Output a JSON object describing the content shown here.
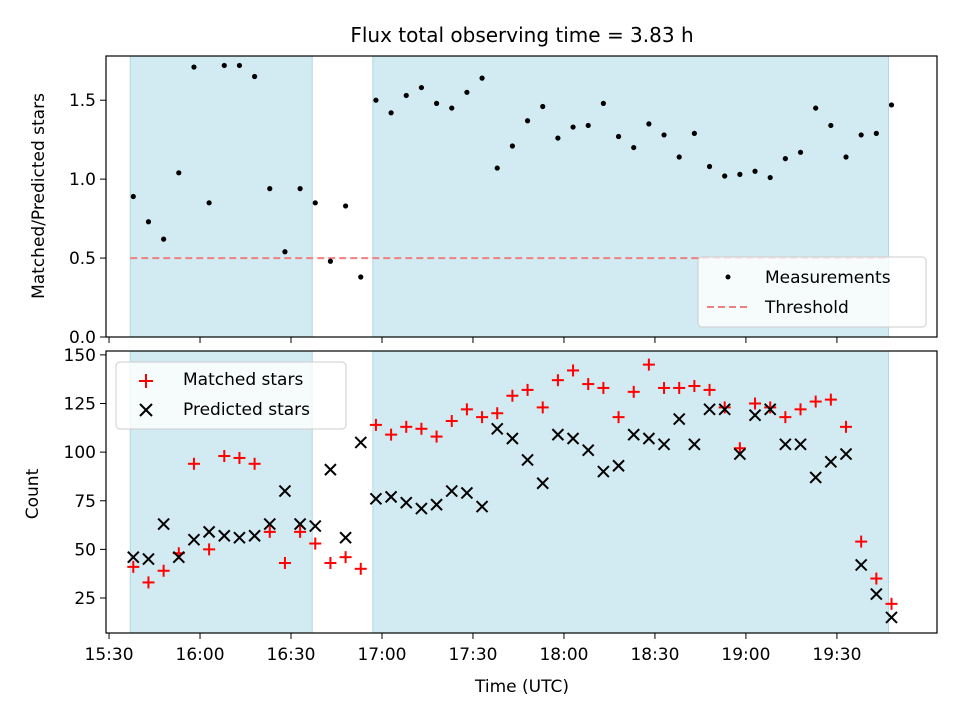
{
  "title": "Flux total observing time = 3.83 h",
  "x_axis_label": "Time (UTC)",
  "colors": {
    "shade": "#add8e6",
    "matched": "#ff0000",
    "predicted": "#000000",
    "threshold": "#f08080"
  },
  "chart_data": [
    {
      "type": "scatter",
      "panel": "top",
      "ylabel": "Matched/Predicted stars",
      "ylim": [
        0.0,
        1.78
      ],
      "y_ticks": [
        0.0,
        0.5,
        1.0,
        1.5
      ],
      "y_tick_labels": [
        "0.0",
        "0.5",
        "1.0",
        "1.5"
      ],
      "xlim": [
        "15:29",
        "20:03"
      ],
      "shaded_intervals": [
        [
          "15:37",
          "16:37"
        ],
        [
          "16:57",
          "19:47"
        ]
      ],
      "threshold": 0.5,
      "legend": {
        "position": "lower right",
        "entries": [
          "Measurements",
          "Threshold"
        ]
      },
      "series": [
        {
          "name": "Measurements",
          "x": [
            "15:38",
            "15:43",
            "15:48",
            "15:53",
            "15:58",
            "16:03",
            "16:08",
            "16:13",
            "16:18",
            "16:23",
            "16:28",
            "16:33",
            "16:38",
            "16:43",
            "16:48",
            "16:53",
            "16:58",
            "17:03",
            "17:08",
            "17:13",
            "17:18",
            "17:23",
            "17:28",
            "17:33",
            "17:38",
            "17:43",
            "17:48",
            "17:53",
            "17:58",
            "18:03",
            "18:08",
            "18:13",
            "18:18",
            "18:23",
            "18:28",
            "18:33",
            "18:38",
            "18:43",
            "18:48",
            "18:53",
            "18:58",
            "19:03",
            "19:08",
            "19:13",
            "19:18",
            "19:23",
            "19:28",
            "19:33",
            "19:38",
            "19:43",
            "19:48"
          ],
          "values": [
            0.89,
            0.73,
            0.62,
            1.04,
            1.71,
            0.85,
            1.72,
            1.72,
            1.65,
            0.94,
            0.54,
            0.94,
            0.85,
            0.48,
            0.83,
            0.38,
            1.5,
            1.42,
            1.53,
            1.58,
            1.48,
            1.45,
            1.55,
            1.64,
            1.07,
            1.21,
            1.37,
            1.46,
            1.26,
            1.33,
            1.34,
            1.48,
            1.27,
            1.2,
            1.35,
            1.28,
            1.14,
            1.29,
            1.08,
            1.02,
            1.03,
            1.05,
            1.01,
            1.13,
            1.17,
            1.45,
            1.34,
            1.14,
            1.28,
            1.29,
            1.47
          ]
        }
      ]
    },
    {
      "type": "scatter",
      "panel": "bottom",
      "ylabel": "Count",
      "ylim": [
        7,
        152
      ],
      "y_ticks": [
        25,
        50,
        75,
        100,
        125,
        150
      ],
      "y_tick_labels": [
        "25",
        "50",
        "75",
        "100",
        "125",
        "150"
      ],
      "x_ticks": [
        "15:30",
        "16:00",
        "16:30",
        "17:00",
        "17:30",
        "18:00",
        "18:30",
        "19:00",
        "19:30"
      ],
      "x_tick_labels": [
        "15:30",
        "16:00",
        "16:30",
        "17:00",
        "17:30",
        "18:00",
        "18:30",
        "19:00",
        "19:30"
      ],
      "xlim": [
        "15:29",
        "20:03"
      ],
      "shaded_intervals": [
        [
          "15:37",
          "16:37"
        ],
        [
          "16:57",
          "19:47"
        ]
      ],
      "legend": {
        "position": "upper left",
        "entries": [
          "Matched stars",
          "Predicted stars"
        ]
      },
      "series": [
        {
          "name": "Matched stars",
          "x": [
            "15:38",
            "15:43",
            "15:48",
            "15:53",
            "15:58",
            "16:03",
            "16:08",
            "16:13",
            "16:18",
            "16:23",
            "16:28",
            "16:33",
            "16:38",
            "16:43",
            "16:48",
            "16:53",
            "16:58",
            "17:03",
            "17:08",
            "17:13",
            "17:18",
            "17:23",
            "17:28",
            "17:33",
            "17:38",
            "17:43",
            "17:48",
            "17:53",
            "17:58",
            "18:03",
            "18:08",
            "18:13",
            "18:18",
            "18:23",
            "18:28",
            "18:33",
            "18:38",
            "18:43",
            "18:48",
            "18:53",
            "18:58",
            "19:03",
            "19:08",
            "19:13",
            "19:18",
            "19:23",
            "19:28",
            "19:33",
            "19:38",
            "19:43",
            "19:48"
          ],
          "values": [
            41,
            33,
            39,
            48,
            94,
            50,
            98,
            97,
            94,
            59,
            43,
            59,
            53,
            43,
            46,
            40,
            114,
            109,
            113,
            112,
            108,
            116,
            122,
            118,
            120,
            129,
            132,
            123,
            137,
            142,
            135,
            133,
            118,
            131,
            145,
            133,
            133,
            134,
            132,
            123,
            102,
            125,
            123,
            118,
            122,
            126,
            127,
            113,
            54,
            35,
            22
          ]
        },
        {
          "name": "Predicted stars",
          "x": [
            "15:38",
            "15:43",
            "15:48",
            "15:53",
            "15:58",
            "16:03",
            "16:08",
            "16:13",
            "16:18",
            "16:23",
            "16:28",
            "16:33",
            "16:38",
            "16:43",
            "16:48",
            "16:53",
            "16:58",
            "17:03",
            "17:08",
            "17:13",
            "17:18",
            "17:23",
            "17:28",
            "17:33",
            "17:38",
            "17:43",
            "17:48",
            "17:53",
            "17:58",
            "18:03",
            "18:08",
            "18:13",
            "18:18",
            "18:23",
            "18:28",
            "18:33",
            "18:38",
            "18:43",
            "18:48",
            "18:53",
            "18:58",
            "19:03",
            "19:08",
            "19:13",
            "19:18",
            "19:23",
            "19:28",
            "19:33",
            "19:38",
            "19:43",
            "19:48"
          ],
          "values": [
            46,
            45,
            63,
            46,
            55,
            59,
            57,
            56,
            57,
            63,
            80,
            63,
            62,
            91,
            56,
            105,
            76,
            77,
            74,
            71,
            73,
            80,
            79,
            72,
            112,
            107,
            96,
            84,
            109,
            107,
            101,
            90,
            93,
            109,
            107,
            104,
            117,
            104,
            122,
            122,
            99,
            119,
            122,
            104,
            104,
            87,
            95,
            99,
            42,
            27,
            15
          ]
        }
      ]
    }
  ]
}
